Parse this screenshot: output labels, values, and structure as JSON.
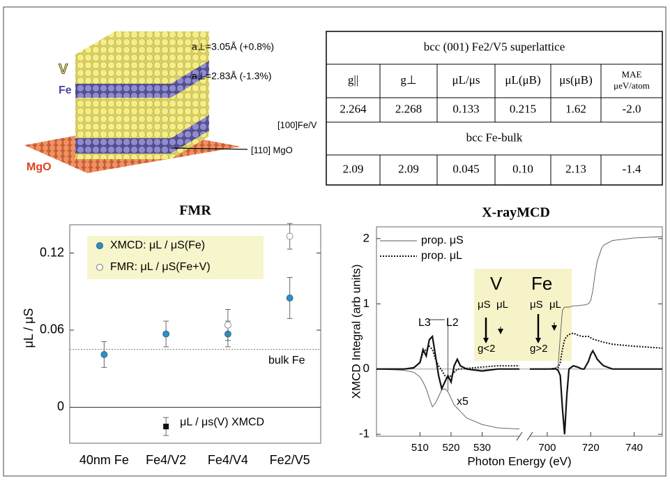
{
  "illustration": {
    "labels": {
      "v": "V",
      "fe": "Fe",
      "mgo": "MgO",
      "a_perp_v": "a⊥=3.05Å (+0.8%)",
      "a_perp_fe": "a⊥=2.83Å (-1.3%)",
      "dir_fev": "[100]Fe/V",
      "dir_mgo": "[110] MgO"
    }
  },
  "table": {
    "rows": [
      [
        "bcc (001) Fe2/V5 superlattice"
      ],
      [
        "g||",
        "g⊥",
        "μL/μs",
        "μL(μB)",
        "μs(μB)",
        [
          "MAE",
          "μeV/atom"
        ]
      ],
      [
        "2.264",
        "2.268",
        "0.133",
        "0.215",
        "1.62",
        "-2.0"
      ],
      [
        "bcc Fe-bulk"
      ],
      [
        "2.09",
        "2.09",
        "0.045",
        "0.10",
        "2.13",
        "-1.4"
      ]
    ]
  },
  "chart_data": [
    {
      "type": "errorbar",
      "title": "FMR",
      "ylabel": "μL / μS",
      "categories": [
        "40nm Fe",
        "Fe4/V2",
        "Fe4/V4",
        "Fe2/V5"
      ],
      "ylim": [
        -0.028,
        0.142
      ],
      "yticks": [
        0,
        0.06,
        0.12
      ],
      "legend": "upper left",
      "reference_line": {
        "value": 0.045,
        "label": "bulk Fe"
      },
      "series": [
        {
          "name": "XMCD: μL / μS(Fe)",
          "color": "#2e8fc0",
          "marker": "filled",
          "values": [
            0.041,
            0.057,
            0.057,
            0.085
          ],
          "errors": [
            0.01,
            0.01,
            0.01,
            0.016
          ]
        },
        {
          "name": "FMR:  μL / μS(Fe+V)",
          "color": "#ffffff",
          "marker": "open",
          "values": [
            null,
            null,
            0.064,
            0.133
          ],
          "errors": [
            null,
            null,
            0.012,
            0.01
          ]
        },
        {
          "name": "μL / μs(V)  XMCD",
          "color": "#111111",
          "marker": "square",
          "label_at_point": true,
          "values": [
            null,
            -0.015,
            null,
            null
          ],
          "errors": [
            null,
            0.007,
            null,
            null
          ]
        }
      ]
    },
    {
      "type": "line",
      "title": "X-rayMCD",
      "xlabel": "Photon Energy (eV)",
      "ylabel": "XMCD Integral (arb units)",
      "xlim": [
        496,
        753
      ],
      "xbreak": [
        542,
        692
      ],
      "xticks": [
        510,
        520,
        530,
        700,
        720,
        740
      ],
      "ylim": [
        -1.03,
        2.18
      ],
      "yticks": [
        -1,
        0,
        1,
        2
      ],
      "legend": "upper left",
      "vline": 519,
      "annotations": [
        "L3",
        "L2",
        "x5",
        "V",
        "Fe",
        "μS",
        "μL",
        "μS",
        "μL",
        "g<2",
        "g>2"
      ],
      "x": [
        496,
        505,
        508,
        510,
        511,
        512,
        513,
        514,
        515,
        516,
        517,
        518,
        519,
        520,
        521,
        522,
        523,
        525,
        530,
        535,
        542,
        692,
        700,
        704,
        705,
        706,
        707,
        708,
        709,
        710,
        712,
        714,
        716,
        717,
        719,
        720,
        721,
        722,
        723,
        725,
        726,
        730,
        740,
        753
      ],
      "series": [
        {
          "name": "prop. μS",
          "color": "#555555",
          "style": "thin",
          "values": [
            0,
            -0.02,
            -0.05,
            -0.12,
            -0.2,
            -0.3,
            -0.45,
            -0.58,
            -0.52,
            -0.42,
            -0.32,
            -0.3,
            -0.35,
            -0.45,
            -0.55,
            -0.6,
            -0.65,
            -0.75,
            -0.85,
            -0.9,
            -0.92,
            0,
            0,
            0.02,
            0.05,
            0.5,
            0.9,
            0.95,
            0.95,
            0.95,
            0.97,
            0.97,
            0.98,
            0.98,
            1.0,
            1.05,
            1.2,
            1.45,
            1.65,
            1.85,
            1.9,
            1.97,
            2.01,
            2.03
          ]
        },
        {
          "name": "prop. μL",
          "color": "#111111",
          "style": "dotted",
          "values": [
            0,
            0,
            0.02,
            0.1,
            0.25,
            0.3,
            0.35,
            0.3,
            0.15,
            0.05,
            -0.02,
            -0.1,
            -0.15,
            -0.1,
            -0.05,
            0,
            0,
            0.01,
            0.03,
            0.05,
            0.05,
            0,
            0,
            0.01,
            0.02,
            0.1,
            0.3,
            0.45,
            0.5,
            0.53,
            0.55,
            0.52,
            0.5,
            0.5,
            0.5,
            0.48,
            0.46,
            0.45,
            0.44,
            0.42,
            0.41,
            0.38,
            0.35,
            0.32
          ]
        },
        {
          "color": "#111111",
          "style": "thick",
          "values": [
            0,
            0,
            0.02,
            0.1,
            0.3,
            0.2,
            0.45,
            0.5,
            0.2,
            -0.1,
            -0.3,
            -0.2,
            -0.1,
            -0.2,
            0.05,
            0.15,
            0.05,
            0,
            -0.03,
            0,
            0,
            0,
            0,
            0,
            -0.02,
            -0.1,
            -0.6,
            -1.0,
            -0.4,
            0,
            0.05,
            0.03,
            0,
            0,
            0.12,
            0.22,
            0.28,
            0.22,
            0.15,
            0.08,
            0.05,
            0,
            0,
            0
          ]
        }
      ]
    }
  ]
}
